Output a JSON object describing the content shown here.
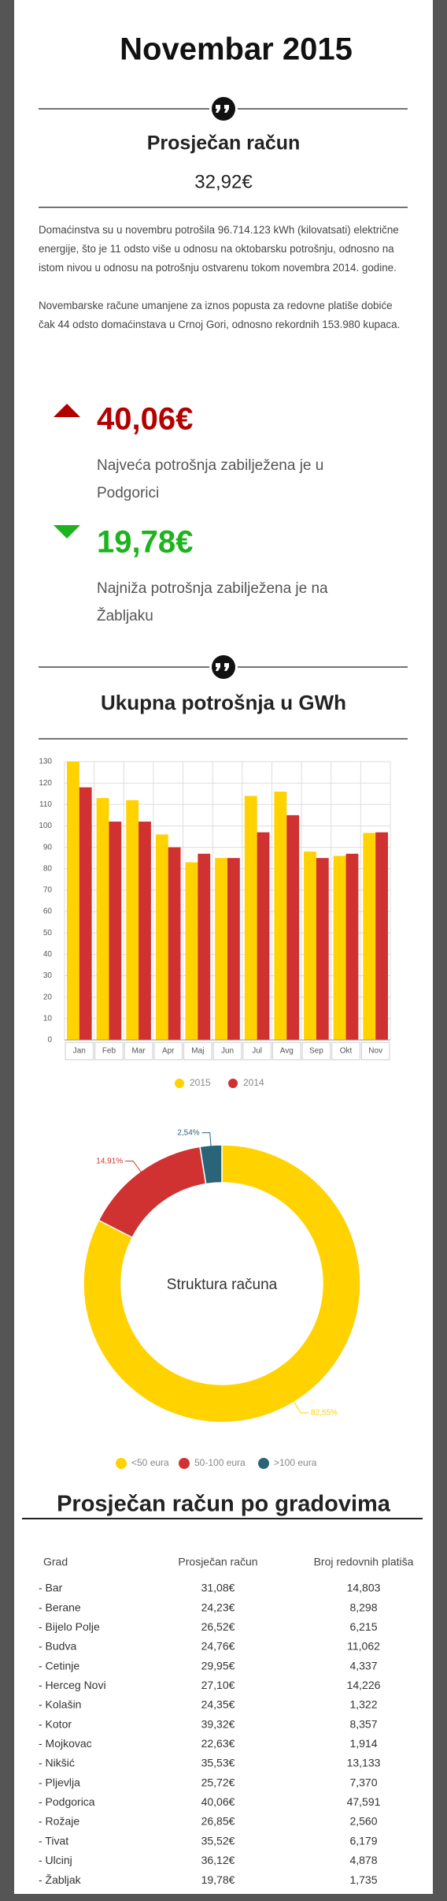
{
  "header": {
    "title": "Novembar 2015"
  },
  "average": {
    "label": "Prosječan račun",
    "value": "32,92€"
  },
  "summary": {
    "paragraphs": [
      "Domaćinstva su u novembru potrošila 96.714.123 kWh (kilovatsati) električne energije, što je 11 odsto više u odnosu na oktobarsku potrošnju, odnosno na istom nivou u odnosu na potrošnju ostvarenu tokom novembra 2014. godine.",
      "Novembarske račune umanjene za iznos popusta za redovne platiše dobiće čak 44 odsto domaćinstava u Crnoj Gori, odnosno rekordnih 153.980 kupaca."
    ]
  },
  "highlights": [
    {
      "value": "40,06€",
      "text": "Najveća potrošnja zabilježena je u Podgorici"
    },
    {
      "value": "19,78€",
      "text": "Najniža potrošnja zabilježena je na Žabljaku"
    }
  ],
  "chart_data": [
    {
      "type": "bar",
      "title": "Ukupna potrošnja u GWh",
      "categories": [
        "Jan",
        "Feb",
        "Mar",
        "Apr",
        "Maj",
        "Jun",
        "Jul",
        "Avg",
        "Sep",
        "Okt",
        "Nov"
      ],
      "series": [
        {
          "name": "2015",
          "color": "#ffd200",
          "values": [
            130,
            113,
            112,
            96,
            83,
            85,
            114,
            116,
            88,
            86,
            96.7
          ]
        },
        {
          "name": "2014",
          "color": "#d03232",
          "values": [
            118,
            102,
            102,
            90,
            87,
            85,
            97,
            105,
            85,
            87,
            97
          ]
        }
      ],
      "ylim": [
        0,
        130
      ],
      "yticks": [
        0,
        10,
        20,
        30,
        40,
        50,
        60,
        70,
        80,
        90,
        100,
        110,
        120,
        130
      ],
      "grid": true,
      "legend": "bottom"
    },
    {
      "type": "pie",
      "title": "Struktura računa",
      "categories": [
        "<50 eura",
        "50-100 eura",
        ">100 eura"
      ],
      "values": [
        82.55,
        14.91,
        2.54
      ],
      "value_labels": [
        "82,55%",
        "14,91%",
        "2,54%"
      ],
      "colors": [
        "#ffd200",
        "#d03232",
        "#2a6478"
      ],
      "legend": "bottom"
    }
  ],
  "table": {
    "title": "Prosječan račun po gradovima",
    "columns": [
      "Grad",
      "Prosječan račun",
      "Broj redovnih platiša"
    ],
    "rows": [
      [
        "- Bar",
        "31,08€",
        "14,803"
      ],
      [
        "- Berane",
        "24,23€",
        "8,298"
      ],
      [
        "- Bijelo Polje",
        "26,52€",
        "6,215"
      ],
      [
        "- Budva",
        "24,76€",
        "11,062"
      ],
      [
        "- Cetinje",
        "29,95€",
        "4,337"
      ],
      [
        "- Herceg Novi",
        "27,10€",
        "14,226"
      ],
      [
        "- Kolašin",
        "24,35€",
        "1,322"
      ],
      [
        "- Kotor",
        "39,32€",
        "8,357"
      ],
      [
        "- Mojkovac",
        "22,63€",
        "1,914"
      ],
      [
        "- Nikšić",
        "35,53€",
        "13,133"
      ],
      [
        "- Pljevlja",
        "25,72€",
        "7,370"
      ],
      [
        "- Podgorica",
        "40,06€",
        "47,591"
      ],
      [
        "- Rožaje",
        "26,85€",
        "2,560"
      ],
      [
        "- Tivat",
        "35,52€",
        "6,179"
      ],
      [
        "- Ulcinj",
        "36,12€",
        "4,878"
      ],
      [
        "- Žabljak",
        "19,78€",
        "1,735"
      ]
    ]
  }
}
